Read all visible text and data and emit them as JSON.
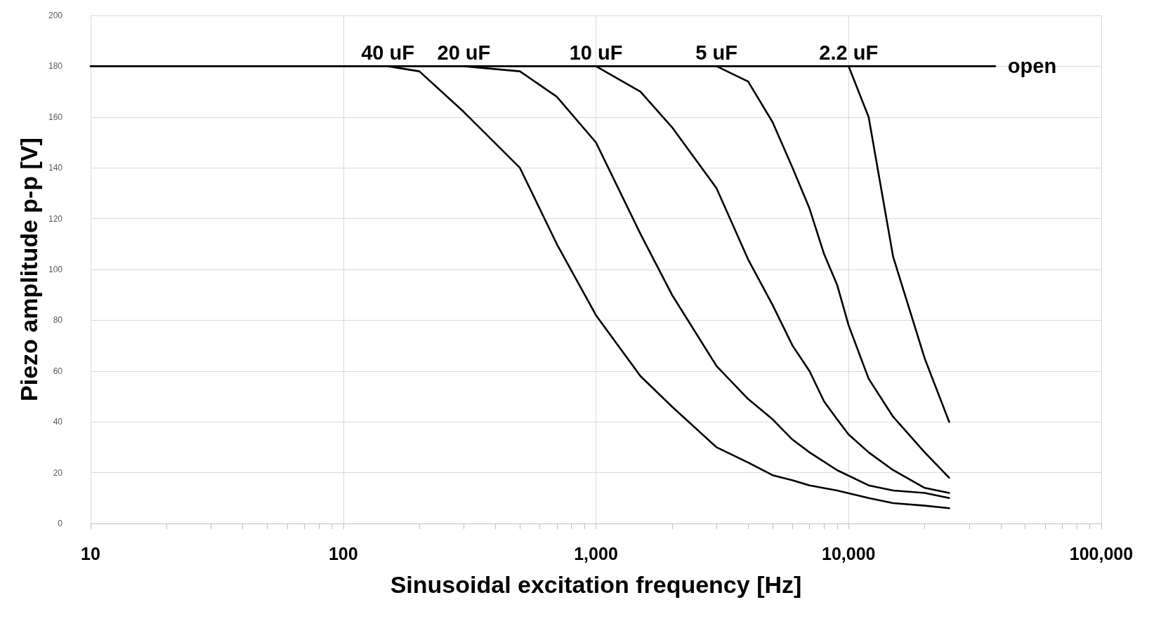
{
  "chart_data": {
    "type": "line",
    "xlabel": "Sinusoidal excitation frequency [Hz]",
    "ylabel": "Piezo amplitude p-p [V]",
    "log": "x",
    "grid": true,
    "marker": "none",
    "line_style": "solid",
    "xlim": [
      10,
      100000
    ],
    "ylim": [
      0,
      200
    ],
    "xticks": [
      {
        "value": 10,
        "label": "10"
      },
      {
        "value": 20,
        "label": null
      },
      {
        "value": 30,
        "label": null
      },
      {
        "value": 40,
        "label": null
      },
      {
        "value": 50,
        "label": null
      },
      {
        "value": 60,
        "label": null
      },
      {
        "value": 70,
        "label": null
      },
      {
        "value": 80,
        "label": null
      },
      {
        "value": 90,
        "label": null
      },
      {
        "value": 100,
        "label": "100"
      },
      {
        "value": 200,
        "label": null
      },
      {
        "value": 300,
        "label": null
      },
      {
        "value": 400,
        "label": null
      },
      {
        "value": 500,
        "label": null
      },
      {
        "value": 600,
        "label": null
      },
      {
        "value": 700,
        "label": null
      },
      {
        "value": 800,
        "label": null
      },
      {
        "value": 900,
        "label": null
      },
      {
        "value": 1000,
        "label": "1,000"
      },
      {
        "value": 2000,
        "label": null
      },
      {
        "value": 3000,
        "label": null
      },
      {
        "value": 4000,
        "label": null
      },
      {
        "value": 5000,
        "label": null
      },
      {
        "value": 6000,
        "label": null
      },
      {
        "value": 7000,
        "label": null
      },
      {
        "value": 8000,
        "label": null
      },
      {
        "value": 9000,
        "label": null
      },
      {
        "value": 10000,
        "label": "10,000"
      },
      {
        "value": 20000,
        "label": null
      },
      {
        "value": 30000,
        "label": null
      },
      {
        "value": 40000,
        "label": null
      },
      {
        "value": 50000,
        "label": null
      },
      {
        "value": 60000,
        "label": null
      },
      {
        "value": 70000,
        "label": null
      },
      {
        "value": 80000,
        "label": null
      },
      {
        "value": 90000,
        "label": null
      },
      {
        "value": 100000,
        "label": "100,000"
      }
    ],
    "yticks": [
      0,
      20,
      40,
      60,
      80,
      100,
      120,
      140,
      160,
      180,
      200
    ],
    "series": [
      {
        "color": "#000000",
        "x": [
          10,
          38000
        ],
        "values": [
          180,
          180
        ]
      },
      {
        "color": "#000000",
        "x": [
          150,
          200,
          300,
          500,
          700,
          1000,
          1500,
          2000,
          3000,
          4000,
          5000,
          6000,
          7000,
          9000,
          12000,
          15000,
          20000,
          25000
        ],
        "values": [
          180,
          178,
          162,
          140,
          110,
          82,
          58,
          46,
          30,
          24,
          19,
          17,
          15,
          13,
          10,
          8,
          7,
          6
        ]
      },
      {
        "color": "#000000",
        "x": [
          300,
          500,
          700,
          1000,
          1500,
          2000,
          3000,
          4000,
          5000,
          6000,
          7000,
          9000,
          12000,
          15000,
          20000,
          25000
        ],
        "values": [
          180,
          178,
          168,
          150,
          114,
          90,
          62,
          49,
          41,
          33,
          28,
          21,
          15,
          13,
          12,
          10
        ]
      },
      {
        "color": "#000000",
        "x": [
          1000,
          1500,
          2000,
          3000,
          4000,
          5000,
          6000,
          7000,
          8000,
          9000,
          10000,
          12000,
          15000,
          20000,
          25000
        ],
        "values": [
          180,
          170,
          156,
          132,
          104,
          86,
          70,
          60,
          48,
          41,
          35,
          28,
          21,
          14,
          12
        ]
      },
      {
        "color": "#000000",
        "x": [
          3000,
          4000,
          5000,
          6000,
          7000,
          8000,
          9000,
          10000,
          12000,
          15000,
          20000,
          25000
        ],
        "values": [
          180,
          174,
          158,
          140,
          124,
          106,
          94,
          78,
          57,
          42,
          28,
          18
        ]
      },
      {
        "color": "#000000",
        "x": [
          10000,
          12000,
          15000,
          20000,
          25000
        ],
        "values": [
          180,
          160,
          105,
          65,
          40
        ]
      }
    ],
    "annotations": [
      {
        "text": "40 uF",
        "x": 150,
        "y": 180
      },
      {
        "text": "20 uF",
        "x": 300,
        "y": 180
      },
      {
        "text": "10 uF",
        "x": 1000,
        "y": 180
      },
      {
        "text": "5 uF",
        "x": 3000,
        "y": 180
      },
      {
        "text": "2.2 uF",
        "x": 10000,
        "y": 180
      },
      {
        "text": "open",
        "x": 38000,
        "y": 180
      }
    ]
  }
}
